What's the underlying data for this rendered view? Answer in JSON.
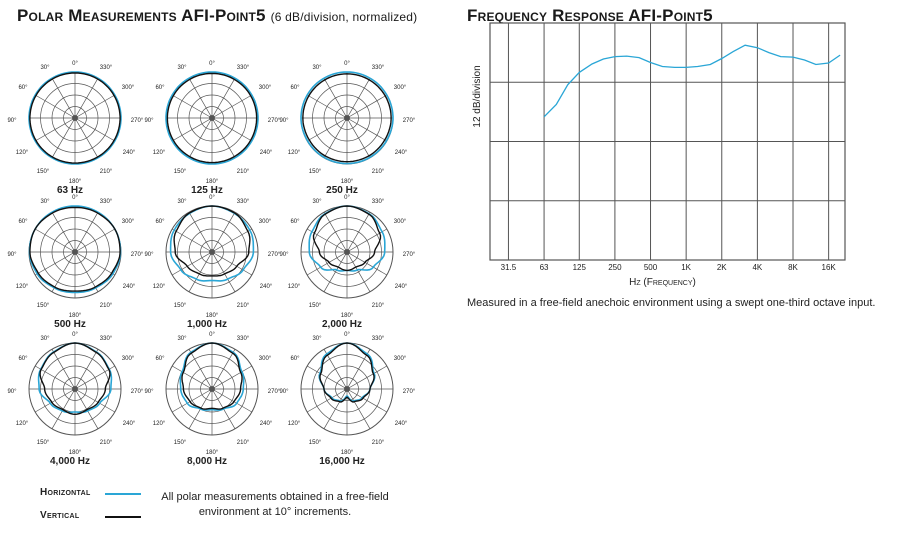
{
  "polar_title": "Polar Measurements AFI-Point5",
  "polar_subtitle": "(6 dB/division, normalized)",
  "fr_title": "Frequency Response AFI-Point5",
  "colors": {
    "horizontal": "#2aa6d6",
    "vertical": "#111111",
    "grid": "#555555"
  },
  "legend": {
    "horizontal": "Horizontal",
    "vertical": "Vertical",
    "note": "All polar measurements obtained in a free-field environment at 10° increments."
  },
  "fr_caption": "Measured in a free-field anechoic environment using a swept one-third octave input.",
  "angle_labels": [
    "0°",
    "30°",
    "60°",
    "90°",
    "120°",
    "150°",
    "180°",
    "210°",
    "240°",
    "270°",
    "300°",
    "330°"
  ],
  "chart_data": [
    {
      "type": "polar",
      "title": "Polar Measurements AFI-Point5",
      "subtitle": "(6 dB/division, normalized)",
      "radial_unit": "normalized radius (0 = center, 1 = 0 dB)",
      "angles_deg": [
        0,
        30,
        60,
        90,
        120,
        150,
        180,
        210,
        240,
        270,
        300,
        330
      ],
      "plots": [
        {
          "label": "63 Hz",
          "horizontal": [
            1,
            1,
            1,
            1,
            1,
            1,
            1,
            1,
            1,
            1,
            1,
            1
          ],
          "vertical": [
            0.98,
            0.98,
            0.98,
            0.98,
            0.98,
            0.98,
            0.98,
            0.98,
            0.98,
            0.98,
            0.98,
            0.98
          ]
        },
        {
          "label": "125 Hz",
          "horizontal": [
            1,
            1,
            1,
            1,
            1,
            1,
            1,
            1,
            1,
            1,
            1,
            1
          ],
          "vertical": [
            0.97,
            0.97,
            0.97,
            0.97,
            0.97,
            0.97,
            0.97,
            0.97,
            0.97,
            0.97,
            0.97,
            0.97
          ]
        },
        {
          "label": "250 Hz",
          "horizontal": [
            1,
            1,
            1,
            1,
            0.99,
            0.99,
            0.99,
            0.99,
            0.99,
            1,
            1,
            1
          ],
          "vertical": [
            0.96,
            0.96,
            0.96,
            0.96,
            0.95,
            0.95,
            0.95,
            0.95,
            0.95,
            0.96,
            0.96,
            0.96
          ]
        },
        {
          "label": "500 Hz",
          "horizontal": [
            1,
            1,
            1,
            0.99,
            0.95,
            0.9,
            0.88,
            0.9,
            0.95,
            0.99,
            1,
            1
          ],
          "vertical": [
            0.97,
            0.98,
            1,
            0.98,
            0.92,
            0.88,
            0.85,
            0.88,
            0.92,
            0.98,
            1,
            0.98
          ]
        },
        {
          "label": "1,000 Hz",
          "horizontal": [
            1,
            0.97,
            0.95,
            0.9,
            0.78,
            0.68,
            0.62,
            0.68,
            0.78,
            0.9,
            0.95,
            0.97
          ],
          "vertical": [
            1,
            0.98,
            0.9,
            0.8,
            0.62,
            0.55,
            0.52,
            0.55,
            0.62,
            0.8,
            0.9,
            0.98
          ]
        },
        {
          "label": "2,000 Hz",
          "horizontal": [
            1,
            0.96,
            0.88,
            0.82,
            0.66,
            0.45,
            0.4,
            0.45,
            0.66,
            0.82,
            0.88,
            0.96
          ],
          "vertical": [
            1,
            0.95,
            0.82,
            0.6,
            0.45,
            0.38,
            0.4,
            0.38,
            0.45,
            0.6,
            0.82,
            0.95
          ]
        },
        {
          "label": "4,000 Hz",
          "horizontal": [
            1,
            0.93,
            0.86,
            0.78,
            0.62,
            0.55,
            0.5,
            0.55,
            0.62,
            0.78,
            0.86,
            0.93
          ],
          "vertical": [
            1,
            0.92,
            0.85,
            0.66,
            0.58,
            0.52,
            0.55,
            0.52,
            0.58,
            0.66,
            0.85,
            0.92
          ]
        },
        {
          "label": "8,000 Hz",
          "horizontal": [
            1,
            0.92,
            0.75,
            0.68,
            0.62,
            0.5,
            0.45,
            0.5,
            0.62,
            0.68,
            0.75,
            0.92
          ],
          "vertical": [
            1,
            0.9,
            0.72,
            0.62,
            0.55,
            0.48,
            0.42,
            0.48,
            0.55,
            0.62,
            0.72,
            0.9
          ]
        },
        {
          "label": "16,000 Hz",
          "horizontal": [
            1,
            0.88,
            0.68,
            0.5,
            0.38,
            0.3,
            0.15,
            0.3,
            0.38,
            0.5,
            0.68,
            0.88
          ],
          "vertical": [
            1,
            0.85,
            0.66,
            0.5,
            0.4,
            0.32,
            0.18,
            0.32,
            0.4,
            0.5,
            0.66,
            0.85
          ]
        }
      ]
    },
    {
      "type": "line",
      "title": "Frequency Response AFI-Point5",
      "xlabel": "Hz (Frequency)",
      "ylabel": "12 dB/division",
      "x_scale": "log",
      "x_ticks": [
        31.5,
        63,
        125,
        250,
        500,
        1000,
        2000,
        4000,
        8000,
        16000
      ],
      "x_tick_labels": [
        "31.5",
        "63",
        "125",
        "250",
        "500",
        "1K",
        "2K",
        "4K",
        "8K",
        "16K"
      ],
      "xlim": [
        22,
        22000
      ],
      "y_unit": "dB relative to top gridline",
      "ylim": [
        -48,
        0
      ],
      "series": [
        {
          "name": "Frequency Response",
          "x": [
            63,
            80,
            100,
            125,
            160,
            200,
            250,
            315,
            400,
            500,
            630,
            800,
            1000,
            1250,
            1600,
            2000,
            2500,
            3150,
            4000,
            5000,
            6300,
            8000,
            10000,
            12500,
            16000,
            20000
          ],
          "y": [
            -19,
            -16.5,
            -12.5,
            -10,
            -8.3,
            -7.3,
            -6.8,
            -6.7,
            -7.0,
            -8.0,
            -8.8,
            -9.0,
            -9.0,
            -8.8,
            -8.4,
            -7.2,
            -5.8,
            -4.5,
            -5.0,
            -6.0,
            -6.8,
            -6.9,
            -7.5,
            -8.4,
            -8.1,
            -6.5
          ]
        }
      ]
    }
  ]
}
